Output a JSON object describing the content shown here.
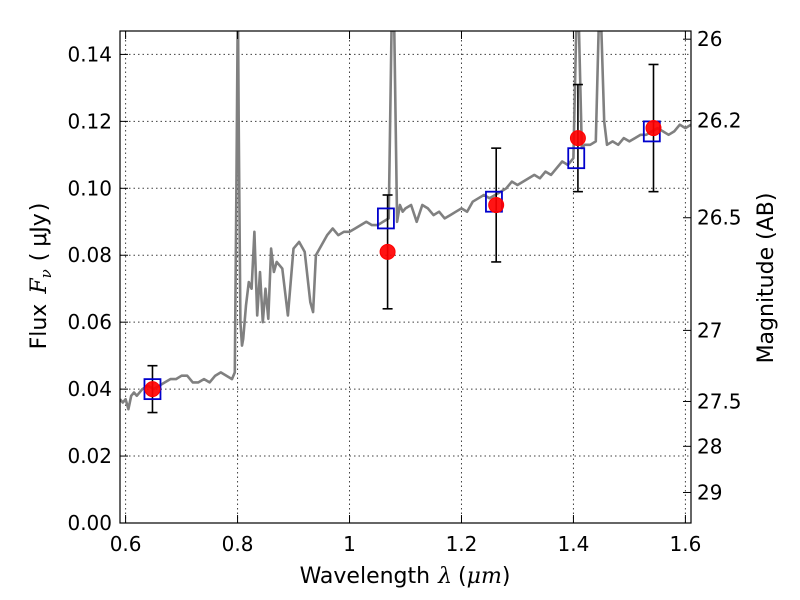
{
  "chart_data": {
    "type": "scatter",
    "xlabel": "Wavelength",
    "xlabel_symbol": "λ",
    "xlabel_unit": "μm",
    "ylabel": "Flux",
    "ylabel_symbol": "F",
    "ylabel_subscript": "ν",
    "ylabel_unit": "μJy",
    "y2label": "Magnitude (AB)",
    "xlim": [
      0.59,
      1.61
    ],
    "ylim": [
      0.0,
      0.147
    ],
    "grid": true,
    "xticks": [
      {
        "v": 0.6,
        "label": "0.6"
      },
      {
        "v": 0.8,
        "label": "0.8"
      },
      {
        "v": 1.0,
        "label": "1"
      },
      {
        "v": 1.2,
        "label": "1.2"
      },
      {
        "v": 1.4,
        "label": "1.4"
      },
      {
        "v": 1.6,
        "label": "1.6"
      }
    ],
    "yticks": [
      {
        "v": 0.0,
        "label": "0.00"
      },
      {
        "v": 0.02,
        "label": "0.02"
      },
      {
        "v": 0.04,
        "label": "0.04"
      },
      {
        "v": 0.06,
        "label": "0.06"
      },
      {
        "v": 0.08,
        "label": "0.08"
      },
      {
        "v": 0.1,
        "label": "0.10"
      },
      {
        "v": 0.12,
        "label": "0.12"
      },
      {
        "v": 0.14,
        "label": "0.14"
      }
    ],
    "y2ticks": [
      {
        "mag": 26,
        "label": "26"
      },
      {
        "mag": 26.2,
        "label": "26.2"
      },
      {
        "mag": 26.5,
        "label": "26.5"
      },
      {
        "mag": 27,
        "label": "27"
      },
      {
        "mag": 27.5,
        "label": "27.5"
      },
      {
        "mag": 28,
        "label": "28"
      },
      {
        "mag": 29,
        "label": "29"
      }
    ],
    "template_spectrum": {
      "color": "#808080",
      "x": [
        0.59,
        0.595,
        0.6,
        0.605,
        0.61,
        0.615,
        0.62,
        0.63,
        0.64,
        0.65,
        0.66,
        0.67,
        0.68,
        0.69,
        0.7,
        0.71,
        0.72,
        0.73,
        0.74,
        0.75,
        0.76,
        0.77,
        0.78,
        0.79,
        0.795,
        0.798,
        0.8,
        0.801,
        0.802,
        0.805,
        0.808,
        0.81,
        0.815,
        0.82,
        0.825,
        0.83,
        0.835,
        0.84,
        0.845,
        0.85,
        0.855,
        0.86,
        0.865,
        0.87,
        0.88,
        0.89,
        0.9,
        0.91,
        0.92,
        0.93,
        0.935,
        0.94,
        0.95,
        0.96,
        0.97,
        0.98,
        0.99,
        1.0,
        1.01,
        1.02,
        1.03,
        1.04,
        1.05,
        1.06,
        1.07,
        1.075,
        1.08,
        1.085,
        1.09,
        1.095,
        1.1,
        1.11,
        1.12,
        1.13,
        1.14,
        1.15,
        1.16,
        1.17,
        1.18,
        1.19,
        1.2,
        1.21,
        1.22,
        1.23,
        1.24,
        1.25,
        1.26,
        1.27,
        1.28,
        1.29,
        1.3,
        1.31,
        1.32,
        1.33,
        1.34,
        1.35,
        1.36,
        1.37,
        1.38,
        1.39,
        1.4,
        1.405,
        1.41,
        1.415,
        1.42,
        1.43,
        1.44,
        1.445,
        1.45,
        1.455,
        1.46,
        1.47,
        1.48,
        1.49,
        1.5,
        1.51,
        1.52,
        1.53,
        1.54,
        1.55,
        1.56,
        1.57,
        1.58,
        1.59,
        1.6,
        1.61
      ],
      "y": [
        0.037,
        0.036,
        0.037,
        0.034,
        0.038,
        0.039,
        0.038,
        0.04,
        0.041,
        0.04,
        0.041,
        0.042,
        0.043,
        0.043,
        0.044,
        0.044,
        0.042,
        0.042,
        0.043,
        0.042,
        0.044,
        0.045,
        0.044,
        0.043,
        0.045,
        0.1,
        0.147,
        0.147,
        0.12,
        0.06,
        0.053,
        0.055,
        0.065,
        0.072,
        0.07,
        0.087,
        0.062,
        0.075,
        0.06,
        0.07,
        0.061,
        0.082,
        0.075,
        0.078,
        0.076,
        0.062,
        0.082,
        0.084,
        0.081,
        0.066,
        0.063,
        0.08,
        0.083,
        0.086,
        0.088,
        0.086,
        0.087,
        0.087,
        0.088,
        0.089,
        0.09,
        0.089,
        0.089,
        0.09,
        0.091,
        0.147,
        0.147,
        0.09,
        0.095,
        0.093,
        0.094,
        0.095,
        0.09,
        0.095,
        0.094,
        0.092,
        0.093,
        0.091,
        0.092,
        0.093,
        0.094,
        0.093,
        0.096,
        0.097,
        0.098,
        0.097,
        0.098,
        0.099,
        0.1,
        0.102,
        0.101,
        0.102,
        0.103,
        0.104,
        0.103,
        0.105,
        0.104,
        0.106,
        0.108,
        0.107,
        0.109,
        0.147,
        0.147,
        0.112,
        0.113,
        0.113,
        0.114,
        0.147,
        0.147,
        0.12,
        0.113,
        0.114,
        0.113,
        0.115,
        0.114,
        0.115,
        0.116,
        0.116,
        0.117,
        0.118,
        0.117,
        0.116,
        0.117,
        0.119,
        0.118,
        0.119
      ]
    },
    "observed_points": {
      "color": "#ff0000",
      "x": [
        0.648,
        1.068,
        1.262,
        1.408,
        1.543
      ],
      "y": [
        0.04,
        0.081,
        0.095,
        0.115,
        0.118
      ],
      "yerr": [
        0.007,
        0.017,
        0.017,
        0.016,
        0.019
      ]
    },
    "model_points": {
      "color": "#0000cc",
      "x": [
        0.648,
        1.065,
        1.258,
        1.405,
        1.54
      ],
      "y": [
        0.04,
        0.091,
        0.096,
        0.109,
        0.117
      ]
    }
  }
}
